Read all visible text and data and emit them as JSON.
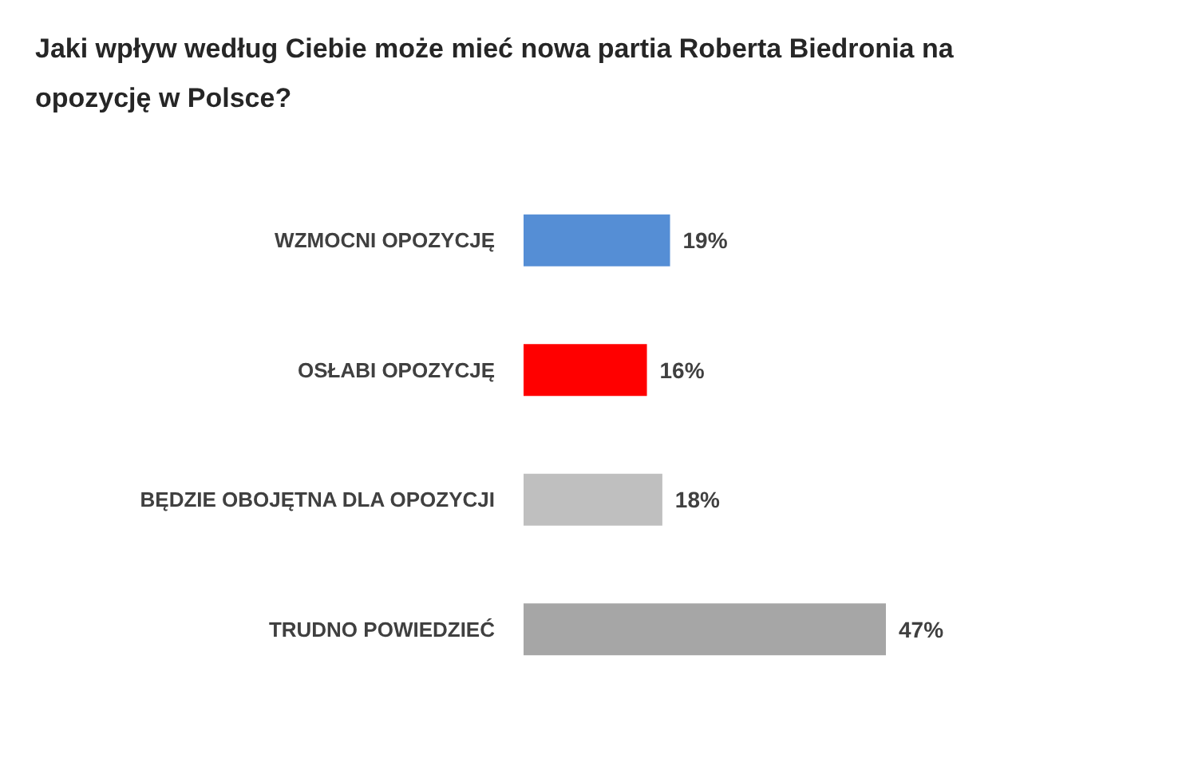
{
  "chart_data": {
    "type": "bar",
    "orientation": "horizontal",
    "title": "Jaki wpływ według Ciebie może mieć nowa partia Roberta Biedronia na opozycję w Polsce?",
    "categories": [
      "WZMOCNI OPOZYCJĘ",
      "OSŁABI OPOZYCJĘ",
      "BĘDZIE OBOJĘTNA DLA OPOZYCJI",
      "TRUDNO POWIEDZIEĆ"
    ],
    "values": [
      19,
      16,
      18,
      47
    ],
    "colors": [
      "#558ed5",
      "#ff0000",
      "#bfbfbf",
      "#a6a6a6"
    ],
    "value_labels": [
      "19%",
      "16%",
      "18%",
      "47%"
    ]
  }
}
